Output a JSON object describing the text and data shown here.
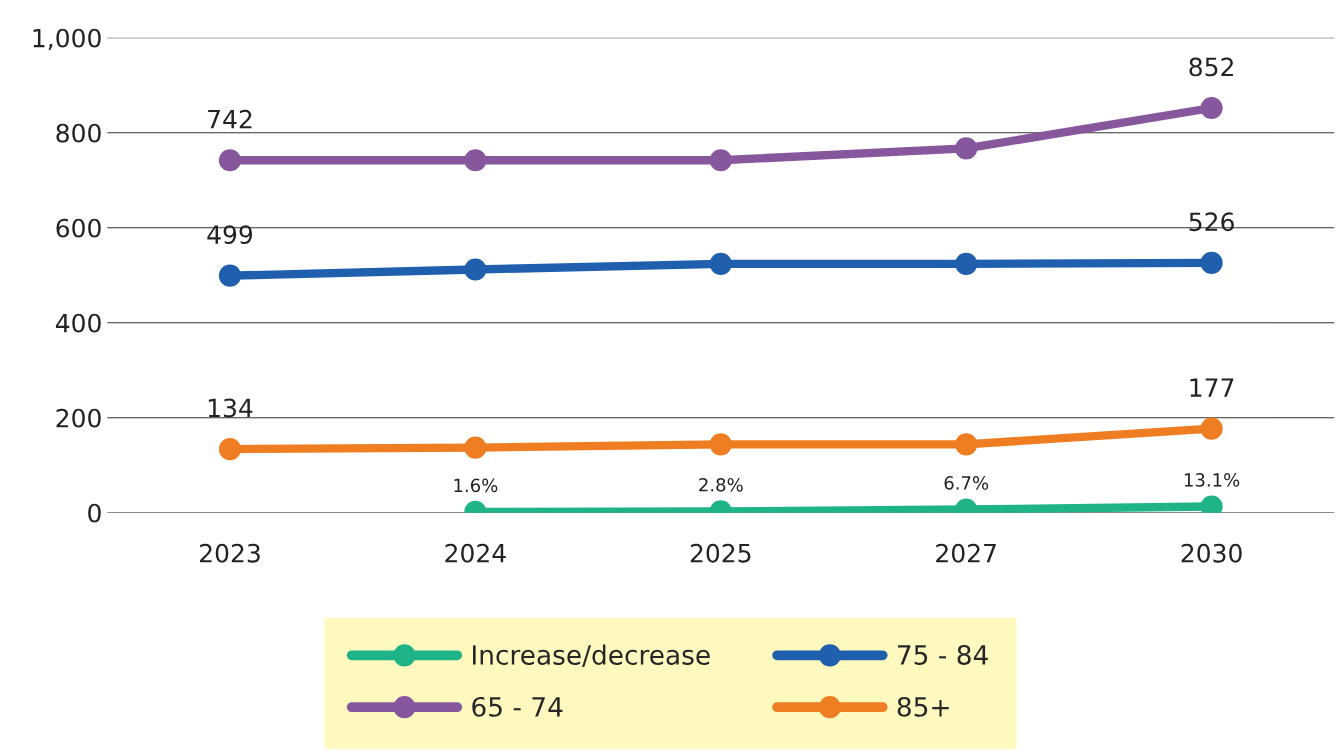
{
  "chart_data": {
    "type": "line",
    "categories": [
      "2023",
      "2024",
      "2025",
      "2027",
      "2030"
    ],
    "series": [
      {
        "name": "Increase/decrease",
        "color": "#1fb488",
        "values": [
          null,
          1.6,
          2.8,
          6.7,
          13.1
        ],
        "value_labels": [
          null,
          "1.6%",
          "2.8%",
          "6.7%",
          "13.1%"
        ]
      },
      {
        "name": "65 - 74",
        "color": "#87579e",
        "values": [
          742,
          742,
          742,
          767,
          852
        ],
        "value_labels": [
          "742",
          null,
          null,
          null,
          "852"
        ]
      },
      {
        "name": "75 - 84",
        "color": "#1f5fad",
        "values": [
          499,
          512,
          524,
          524,
          526
        ],
        "value_labels": [
          "499",
          null,
          null,
          null,
          "526"
        ]
      },
      {
        "name": "85+",
        "color": "#ef7d22",
        "values": [
          134,
          137,
          144,
          144,
          177
        ],
        "value_labels": [
          "134",
          null,
          null,
          null,
          "177"
        ]
      }
    ],
    "ylim": [
      0,
      1000
    ],
    "yticks": [
      0,
      200,
      400,
      600,
      800,
      {
        "value": 1000,
        "label": "1,000"
      }
    ],
    "grid": "y",
    "legend": "bottom",
    "marker": "circle",
    "line_style": "solid"
  }
}
